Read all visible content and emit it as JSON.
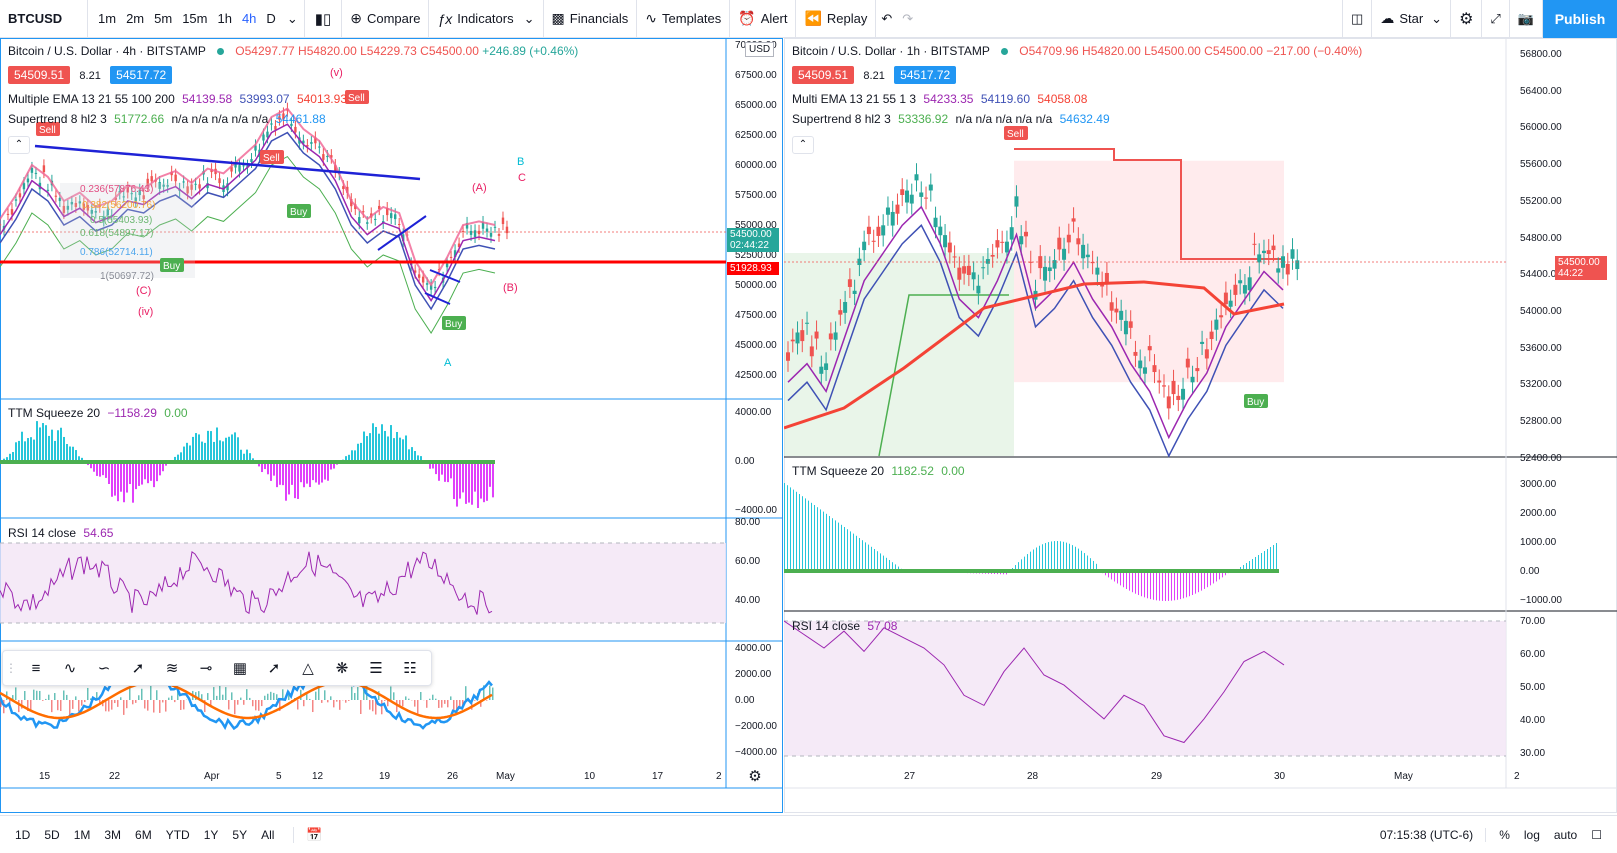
{
  "toolbar": {
    "symbol": "BTCUSD",
    "intervals": [
      "1m",
      "2m",
      "5m",
      "15m",
      "1h",
      "4h",
      "D"
    ],
    "active_interval": "4h",
    "compare": "Compare",
    "indicators": "Indicators",
    "financials": "Financials",
    "templates": "Templates",
    "alert": "Alert",
    "replay": "Replay",
    "star": "Star",
    "publish": "Publish"
  },
  "left": {
    "title": "Bitcoin / U.S. Dollar · 4h · BITSTAMP",
    "ohlc": {
      "o": "O54297.77",
      "h": "H54820.00",
      "l": "L54229.73",
      "c": "C54500.00",
      "chg": "+246.89 (+0.46%)"
    },
    "sell_price": "54509.51",
    "spread": "8.21",
    "buy_price": "54517.72",
    "ema_label": "Multiple EMA 13 21 55 100 200",
    "ema_vals": [
      "54139.58",
      "53993.07",
      "54013.93"
    ],
    "st_label": "Supertrend 8 hl2 3",
    "st_vals": [
      "51772.66",
      "n/a n/a n/a n/a n/a"
    ],
    "st_val2": "54461.88",
    "currency": "USD",
    "price_axis": [
      "70000.00",
      "67500.00",
      "65000.00",
      "62500.00",
      "60000.00",
      "57500.00",
      "55000.00",
      "52500.00",
      "50000.00",
      "47500.00",
      "45000.00",
      "42500.00"
    ],
    "last_price": "54500.00",
    "countdown": "02:44:22",
    "line_price": "51928.93",
    "fib": [
      "0.236(57876.43)",
      "0.382(56200.76)",
      "0.5(55403.93)",
      "0.618(54897.17)",
      "0.786(52714.11)",
      "1(50697.72)"
    ],
    "wave_labels": [
      "(v)",
      "(iv)",
      "A",
      "B",
      "C",
      "(A)",
      "(B)",
      "(C)"
    ],
    "ttm_label": "TTM Squeeze 20",
    "ttm_vals": [
      "−1158.29",
      "0.00"
    ],
    "ttm_axis": [
      "4000.00",
      "0.00",
      "−4000.00"
    ],
    "rsi_label": "RSI 14 close",
    "rsi_val": "54.65",
    "rsi_axis": [
      "80.00",
      "60.00",
      "40.00"
    ],
    "macd_axis": [
      "4000.00",
      "2000.00",
      "0.00",
      "−2000.00",
      "−4000.00"
    ],
    "time_axis": [
      "15",
      "22",
      "Apr",
      "5",
      "12",
      "19",
      "26",
      "May",
      "10",
      "17",
      "2"
    ],
    "signal_sell": "Sell",
    "signal_buy": "Buy"
  },
  "right": {
    "title": "Bitcoin / U.S. Dollar · 1h · BITSTAMP",
    "ohlc": {
      "o": "O54709.96",
      "h": "H54820.00",
      "l": "L54500.00",
      "c": "C54500.00",
      "chg": "−217.00 (−0.40%)"
    },
    "sell_price": "54509.51",
    "spread": "8.21",
    "buy_price": "54517.72",
    "ema_label": "Multi EMA 13 21 55 1 3",
    "ema_vals": [
      "54233.35",
      "54119.60",
      "54058.08"
    ],
    "st_label": "Supertrend 8 hl2 3",
    "st_vals": [
      "53336.92",
      "n/a n/a n/a n/a n/a"
    ],
    "st_val2": "54632.49",
    "price_axis": [
      "56800.00",
      "56400.00",
      "56000.00",
      "55600.00",
      "55200.00",
      "54800.00",
      "54400.00",
      "54000.00",
      "53600.00",
      "53200.00",
      "52800.00",
      "52400.00"
    ],
    "last_price": "54500.00",
    "countdown": "44:22",
    "ttm_label": "TTM Squeeze 20",
    "ttm_vals": [
      "1182.52",
      "0.00"
    ],
    "ttm_axis": [
      "3000.00",
      "2000.00",
      "1000.00",
      "0.00",
      "−1000.00"
    ],
    "rsi_label": "RSI 14 close",
    "rsi_val": "57.08",
    "rsi_axis": [
      "70.00",
      "60.00",
      "50.00",
      "40.00",
      "30.00"
    ],
    "time_axis": [
      "27",
      "28",
      "29",
      "30",
      "May",
      "2"
    ]
  },
  "bottom": {
    "ranges": [
      "1D",
      "5D",
      "1M",
      "3M",
      "6M",
      "YTD",
      "1Y",
      "5Y",
      "All"
    ],
    "clock": "07:15:38 (UTC-6)",
    "pct": "%",
    "log": "log",
    "auto": "auto"
  },
  "colors": {
    "accent": "#2196f3",
    "up": "#26a69a",
    "down": "#ef5350",
    "ema1": "#9c27b0",
    "ema2": "#3f51b5",
    "ema3": "#f44336",
    "green": "#4caf50",
    "rsi": "#9c27b0"
  }
}
